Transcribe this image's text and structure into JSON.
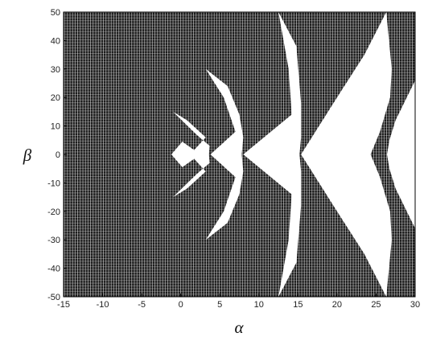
{
  "chart_data": {
    "type": "heatmap",
    "title": "",
    "xlabel": "α",
    "ylabel": "β",
    "xlim": [
      -15,
      30
    ],
    "ylim": [
      -50,
      50
    ],
    "x_ticks": [
      -15,
      -10,
      -5,
      0,
      5,
      10,
      15,
      20,
      25,
      30
    ],
    "y_ticks": [
      50,
      40,
      30,
      20,
      10,
      0,
      -10,
      -20,
      -30,
      -40,
      -50
    ],
    "grid": true,
    "colors": {
      "region_fill": "#1c1c1c",
      "stable_region": "#ffffff",
      "grid_lines": "#ffffff",
      "frame": "#000000"
    },
    "stable_regions": [
      {
        "name": "tongue-0",
        "boundary": [
          [
            -1.2,
            0
          ],
          [
            0.2,
            4.5
          ],
          [
            2.5,
            0
          ],
          [
            0.2,
            -4.5
          ]
        ]
      },
      {
        "name": "tongue-1",
        "boundary": [
          [
            -1.0,
            15
          ],
          [
            2,
            7
          ],
          [
            3.7,
            3
          ],
          [
            3.6,
            0
          ],
          [
            3.7,
            -3
          ],
          [
            2,
            -7
          ],
          [
            -1.0,
            -15
          ],
          [
            0.8,
            -12
          ],
          [
            3.2,
            -6
          ],
          [
            1.2,
            0
          ],
          [
            3.2,
            6
          ],
          [
            0.8,
            12
          ]
        ]
      },
      {
        "name": "tongue-2",
        "boundary": [
          [
            3.2,
            30
          ],
          [
            6,
            24
          ],
          [
            7.5,
            14
          ],
          [
            8.0,
            6
          ],
          [
            7.8,
            0
          ],
          [
            8.0,
            -6
          ],
          [
            7.5,
            -14
          ],
          [
            6,
            -24
          ],
          [
            3.2,
            -30
          ],
          [
            5.5,
            -20
          ],
          [
            7.0,
            -8
          ],
          [
            3.8,
            0
          ],
          [
            7.0,
            8
          ],
          [
            5.5,
            20
          ]
        ]
      },
      {
        "name": "tongue-3",
        "boundary": [
          [
            12.5,
            50
          ],
          [
            14.8,
            38
          ],
          [
            15.4,
            18
          ],
          [
            15.4,
            6
          ],
          [
            15.2,
            0
          ],
          [
            15.4,
            -6
          ],
          [
            15.4,
            -18
          ],
          [
            14.8,
            -38
          ],
          [
            12.5,
            -50
          ],
          [
            13.8,
            -30
          ],
          [
            14.2,
            -14
          ],
          [
            8.0,
            0
          ],
          [
            14.2,
            14
          ],
          [
            13.8,
            30
          ]
        ]
      },
      {
        "name": "tongue-4",
        "boundary": [
          [
            26.3,
            50
          ],
          [
            27.0,
            30
          ],
          [
            26.8,
            20
          ],
          [
            25.5,
            8
          ],
          [
            24.3,
            0
          ],
          [
            25.5,
            -8
          ],
          [
            26.8,
            -20
          ],
          [
            27.0,
            -30
          ],
          [
            26.3,
            -50
          ],
          [
            23.5,
            -35
          ],
          [
            20,
            -20
          ],
          [
            15.4,
            0
          ],
          [
            20,
            20
          ],
          [
            23.5,
            35
          ]
        ]
      },
      {
        "name": "tongue-5",
        "boundary": [
          [
            30,
            26
          ],
          [
            27.5,
            12
          ],
          [
            26.7,
            5
          ],
          [
            26.4,
            0
          ],
          [
            26.7,
            -5
          ],
          [
            27.5,
            -12
          ],
          [
            30,
            -26
          ]
        ]
      }
    ]
  }
}
